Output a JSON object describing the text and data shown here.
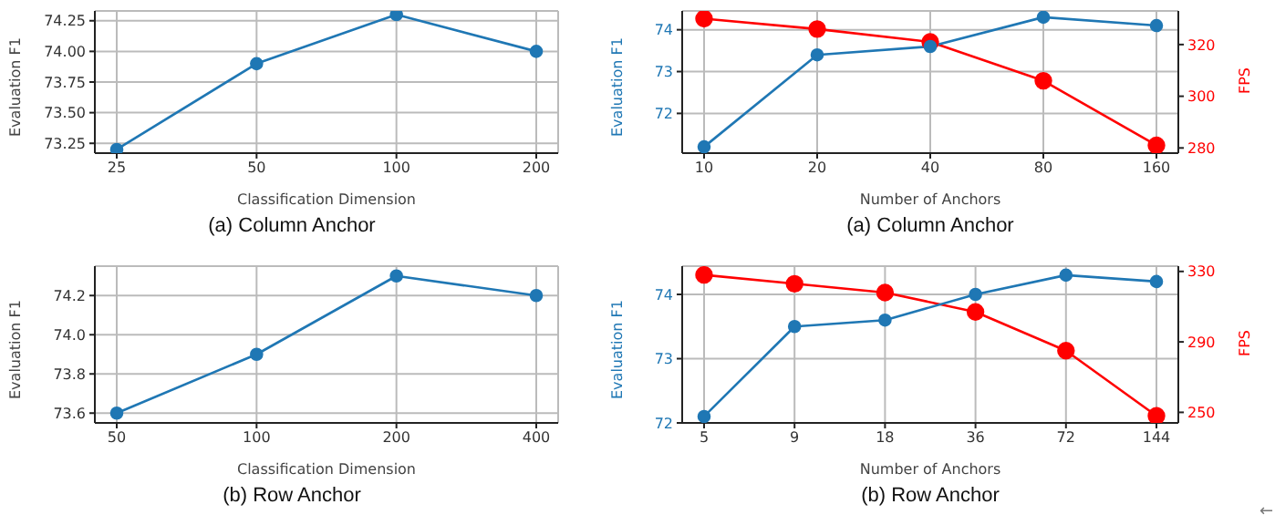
{
  "chart_data": [
    {
      "type": "line",
      "title": "(a) Column Anchor",
      "xlabel": "Classification Dimension",
      "ylabel": "Evaluation F1",
      "categories": [
        "25",
        "50",
        "100",
        "200"
      ],
      "series": [
        {
          "color": "#1f77b4",
          "values": [
            73.2,
            73.9,
            74.3,
            74.0
          ]
        }
      ],
      "ylim": [
        73.17,
        74.33
      ],
      "yticks": [
        {
          "value": 73.25,
          "label": "73.25"
        },
        {
          "value": 73.5,
          "label": "73.50"
        },
        {
          "value": 73.75,
          "label": "73.75"
        },
        {
          "value": 74,
          "label": "74.00"
        },
        {
          "value": 74.25,
          "label": "74.25"
        }
      ],
      "grid": true,
      "marker": "circle",
      "line_style": "solid"
    },
    {
      "type": "line",
      "title": "(a) Column Anchor",
      "xlabel": "Number of Anchors",
      "ylabel": "Evaluation F1",
      "y2label": "FPS",
      "categories": [
        "10",
        "20",
        "40",
        "80",
        "160"
      ],
      "series": [
        {
          "color": "#1f77b4",
          "values": [
            71.2,
            73.4,
            73.6,
            74.3,
            74.1
          ]
        },
        {
          "color": "#ff0000",
          "axis": "y2",
          "values": [
            330,
            326,
            321,
            306,
            281
          ]
        }
      ],
      "ylim": [
        71.05,
        74.45
      ],
      "yticks": [
        72,
        73,
        74
      ],
      "y2lim": [
        278,
        333
      ],
      "y2ticks": [
        280,
        300,
        320
      ],
      "grid": true,
      "marker": "circle",
      "line_style": "solid"
    },
    {
      "type": "line",
      "title": "(b) Row Anchor",
      "xlabel": "Classification Dimension",
      "ylabel": "Evaluation F1",
      "categories": [
        "50",
        "100",
        "200",
        "400"
      ],
      "series": [
        {
          "color": "#1f77b4",
          "values": [
            73.6,
            73.9,
            74.3,
            74.2
          ]
        }
      ],
      "ylim": [
        73.55,
        74.35
      ],
      "yticks": [
        73.6,
        73.8,
        {
          "value": 74,
          "label": "74.0"
        },
        74.2
      ],
      "grid": true,
      "marker": "circle",
      "line_style": "solid"
    },
    {
      "type": "line",
      "title": "(b) Row Anchor",
      "xlabel": "Number of Anchors",
      "ylabel": "Evaluation F1",
      "y2label": "FPS",
      "categories": [
        "5",
        "9",
        "18",
        "36",
        "72",
        "144"
      ],
      "series": [
        {
          "color": "#1f77b4",
          "values": [
            72.1,
            73.5,
            73.6,
            74.0,
            74.3,
            74.2
          ]
        },
        {
          "color": "#ff0000",
          "axis": "y2",
          "values": [
            328,
            323,
            318,
            307,
            285,
            248
          ]
        }
      ],
      "ylim": [
        72,
        74.44
      ],
      "yticks": [
        72,
        73,
        74
      ],
      "y2lim": [
        244,
        333
      ],
      "y2ticks": [
        250,
        290,
        330
      ],
      "grid": true,
      "marker": "circle",
      "line_style": "solid",
      "annotations": [
        "←"
      ]
    }
  ]
}
